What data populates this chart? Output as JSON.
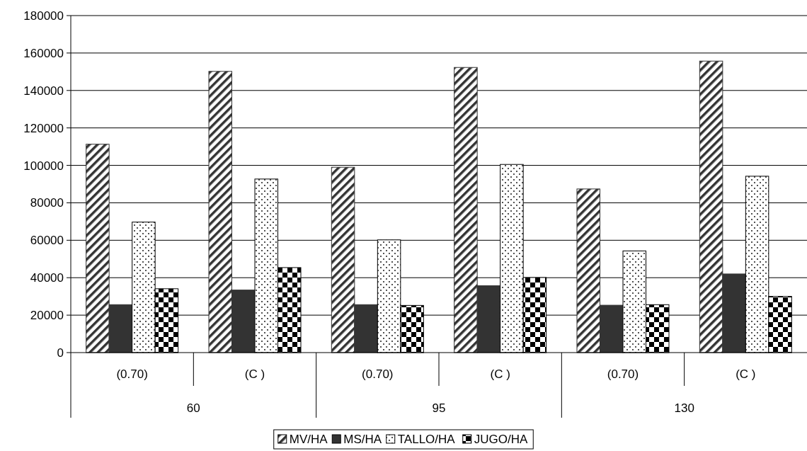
{
  "chart_data": {
    "type": "bar",
    "categories": [
      "(0.70)",
      "(C )",
      "(0.70)",
      "(C )",
      "(0.70)",
      "(C )"
    ],
    "annotations": [
      "60",
      "95",
      "130"
    ],
    "series": [
      {
        "name": "MV/HA",
        "color": "#333333",
        "values": [
          111300,
          150200,
          99000,
          152300,
          87400,
          155700
        ]
      },
      {
        "name": "MS/HA",
        "color": "#333333",
        "values": [
          25600,
          33400,
          25600,
          35700,
          25300,
          42000
        ]
      },
      {
        "name": "TALLO/HA",
        "color": "#000000",
        "values": [
          69700,
          92700,
          60200,
          100500,
          54300,
          94200
        ]
      },
      {
        "name": "JUGO/HA",
        "color": "#000000",
        "values": [
          34100,
          45400,
          25200,
          40100,
          25600,
          30000
        ]
      }
    ],
    "ylim": [
      0,
      180000
    ],
    "yticks": [
      0,
      20000,
      40000,
      60000,
      80000,
      100000,
      120000,
      140000,
      160000,
      180000
    ],
    "grid": "y",
    "legend": "bottom"
  }
}
